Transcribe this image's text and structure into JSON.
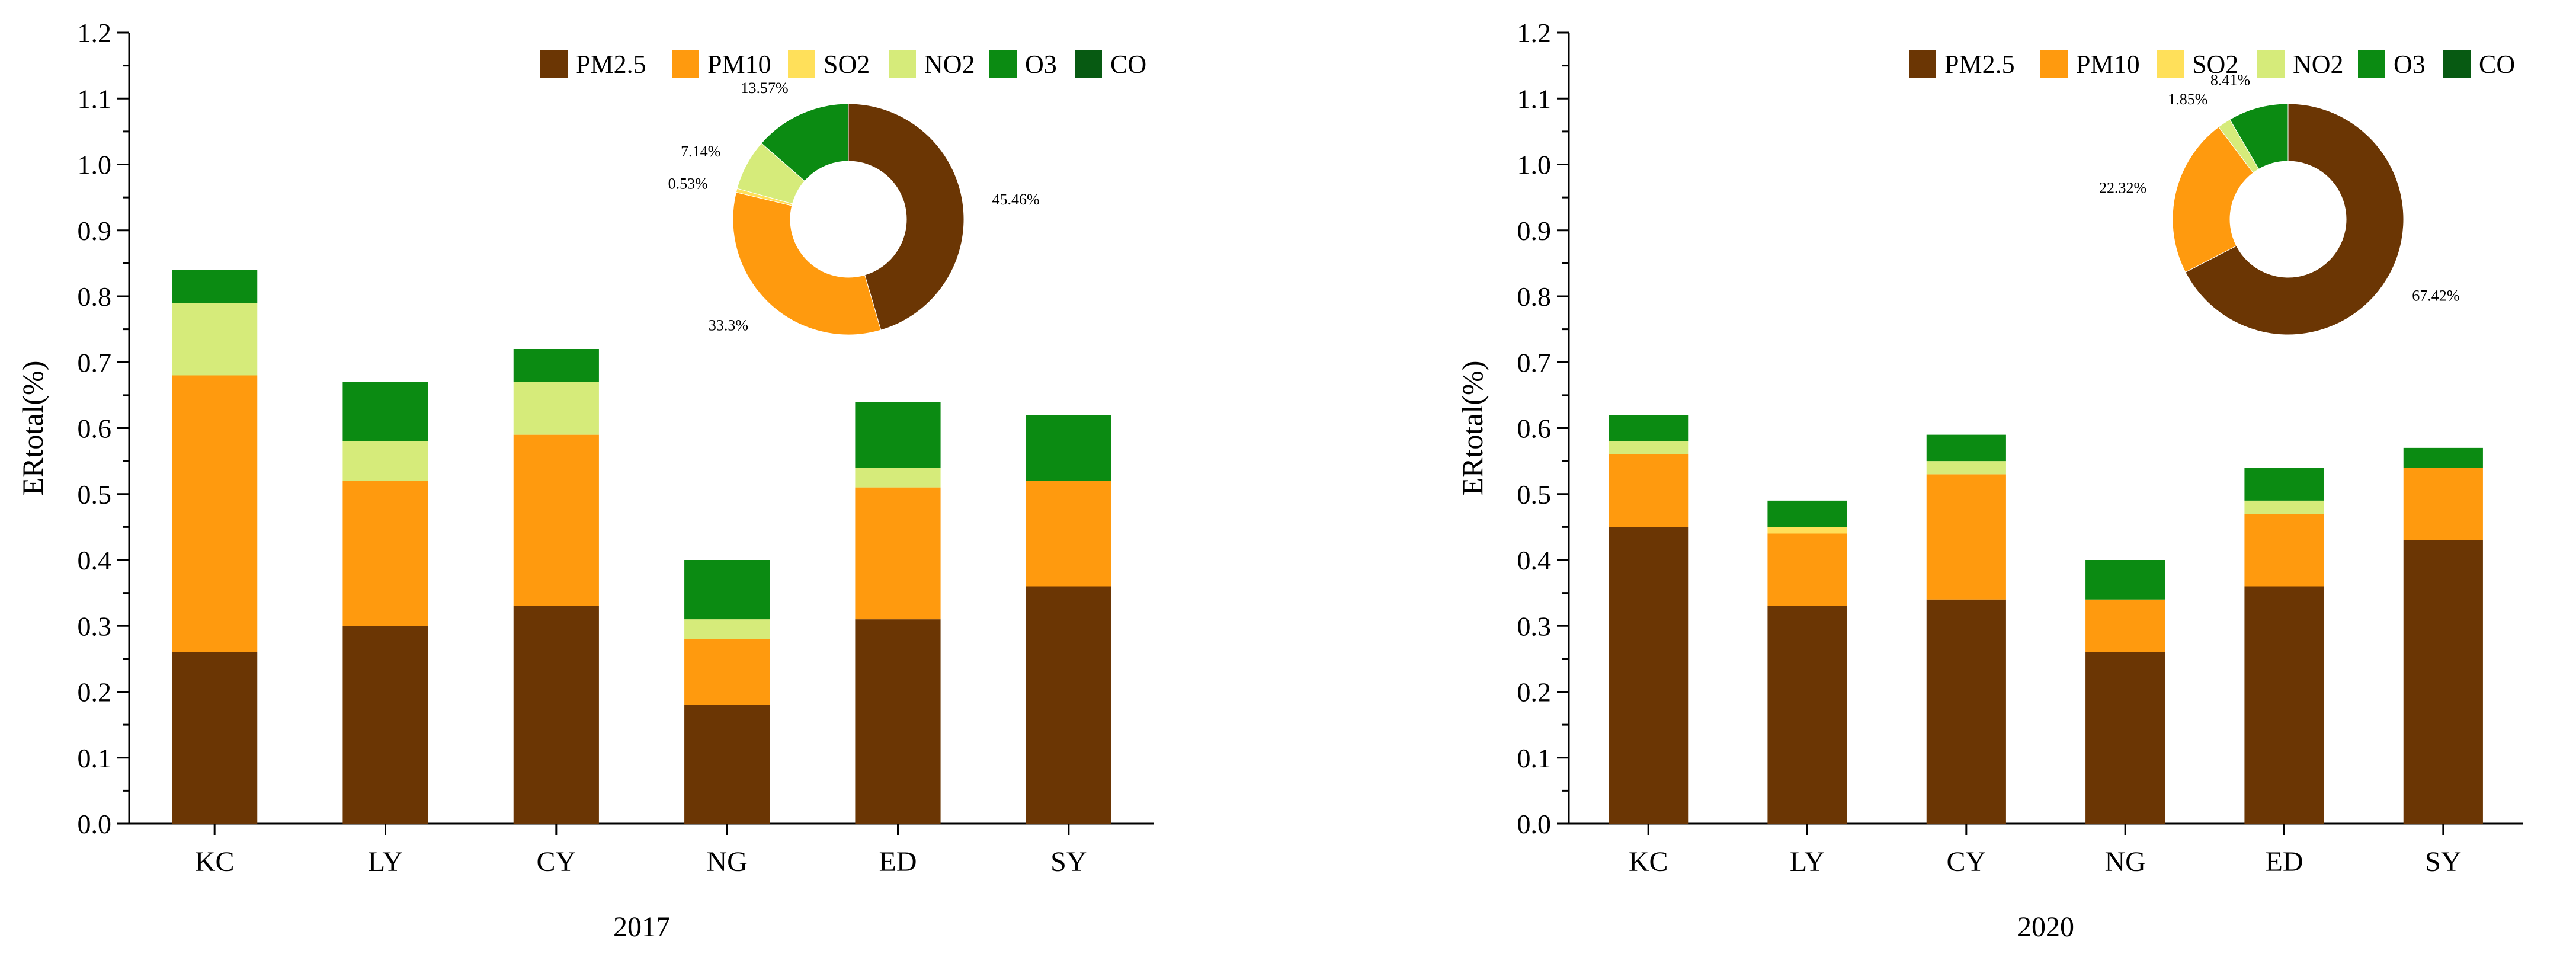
{
  "colors": {
    "PM2.5": "#6B3604",
    "PM10": "#FF9A0E",
    "SO2": "#FFE05A",
    "NO2": "#D6EB7A",
    "O3": "#0B8B12",
    "CO": "#075A12"
  },
  "chart_data": [
    {
      "type": "bar",
      "stacked": true,
      "title": "2017",
      "xlabel": "2017",
      "ylabel": "ERtotal(%)",
      "categories": [
        "KC",
        "LY",
        "CY",
        "NG",
        "ED",
        "SY"
      ],
      "ylim": [
        0,
        1.2
      ],
      "yticks": [
        "0.0",
        "0.1",
        "0.2",
        "0.3",
        "0.4",
        "0.5",
        "0.6",
        "0.7",
        "0.8",
        "0.9",
        "1.0",
        "1.1",
        "1.2"
      ],
      "legend_position": "top-right",
      "series": [
        {
          "name": "PM2.5",
          "values": [
            0.26,
            0.3,
            0.33,
            0.18,
            0.31,
            0.36
          ]
        },
        {
          "name": "PM10",
          "values": [
            0.42,
            0.22,
            0.26,
            0.1,
            0.2,
            0.16
          ]
        },
        {
          "name": "SO2",
          "values": [
            0.0,
            0.0,
            0.0,
            0.0,
            0.0,
            0.0
          ]
        },
        {
          "name": "NO2",
          "values": [
            0.11,
            0.06,
            0.08,
            0.03,
            0.03,
            0.0
          ]
        },
        {
          "name": "O3",
          "values": [
            0.05,
            0.09,
            0.05,
            0.09,
            0.1,
            0.1
          ]
        },
        {
          "name": "CO",
          "values": [
            0.0,
            0.0,
            0.0,
            0.0,
            0.0,
            0.0
          ]
        }
      ],
      "pie": {
        "type": "pie",
        "donut": true,
        "slices": [
          {
            "name": "PM2.5",
            "value": 45.46,
            "label": "45.46%"
          },
          {
            "name": "PM10",
            "value": 33.3,
            "label": "33.3%"
          },
          {
            "name": "SO2",
            "value": 0.53,
            "label": "0.53%"
          },
          {
            "name": "NO2",
            "value": 7.14,
            "label": "7.14%"
          },
          {
            "name": "O3",
            "value": 13.57,
            "label": "13.57%"
          }
        ]
      }
    },
    {
      "type": "bar",
      "stacked": true,
      "title": "2020",
      "xlabel": "2020",
      "ylabel": "ERtotal(%)",
      "categories": [
        "KC",
        "LY",
        "CY",
        "NG",
        "ED",
        "SY"
      ],
      "ylim": [
        0,
        1.2
      ],
      "yticks": [
        "0.0",
        "0.1",
        "0.2",
        "0.3",
        "0.4",
        "0.5",
        "0.6",
        "0.7",
        "0.8",
        "0.9",
        "1.0",
        "1.1",
        "1.2"
      ],
      "legend_position": "top-right",
      "series": [
        {
          "name": "PM2.5",
          "values": [
            0.45,
            0.33,
            0.34,
            0.26,
            0.36,
            0.43
          ]
        },
        {
          "name": "PM10",
          "values": [
            0.11,
            0.11,
            0.19,
            0.08,
            0.11,
            0.11
          ]
        },
        {
          "name": "SO2",
          "values": [
            0.0,
            0.01,
            0.0,
            0.0,
            0.0,
            0.0
          ]
        },
        {
          "name": "NO2",
          "values": [
            0.02,
            0.0,
            0.02,
            0.0,
            0.02,
            0.0
          ]
        },
        {
          "name": "O3",
          "values": [
            0.04,
            0.04,
            0.04,
            0.06,
            0.05,
            0.03
          ]
        },
        {
          "name": "CO",
          "values": [
            0.0,
            0.0,
            0.0,
            0.0,
            0.0,
            0.0
          ]
        }
      ],
      "pie": {
        "type": "pie",
        "donut": true,
        "slices": [
          {
            "name": "PM2.5",
            "value": 67.42,
            "label": "67.42%"
          },
          {
            "name": "PM10",
            "value": 22.32,
            "label": "22.32%"
          },
          {
            "name": "NO2",
            "value": 1.85,
            "label": "1.85%"
          },
          {
            "name": "O3",
            "value": 8.41,
            "label": "8.41%"
          }
        ]
      }
    }
  ]
}
